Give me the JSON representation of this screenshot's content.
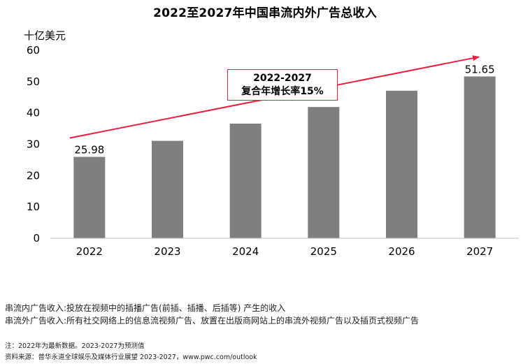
{
  "chart_data": {
    "type": "bar",
    "title": "2022至2027年中国串流内外广告总收入",
    "ylabel": "十亿美元",
    "xlabel": "",
    "categories": [
      "2022",
      "2023",
      "2024",
      "2025",
      "2026",
      "2027"
    ],
    "values": [
      25.98,
      31.1,
      36.6,
      41.9,
      47.1,
      51.65
    ],
    "data_labels": {
      "2022": "25.98",
      "2027": "51.65"
    },
    "ylim": [
      0,
      60
    ],
    "yticks": [
      "0",
      "10",
      "20",
      "30",
      "40",
      "50",
      "60"
    ],
    "grid": false,
    "bar_color": "#7f7f7f",
    "annotation": {
      "line1": "2022-2027",
      "line2": "复合年增长率15%",
      "color": "#e8213f"
    }
  },
  "notes": {
    "line1": "串流内广告收入:投放在视频中的插播广告(前插、插播、后插等) 产生的收入",
    "line2": "串流外广告收入:所有社交网络上的信息流视频广告、放置在出版商网站上的串流外视频广告以及插页式视频广告"
  },
  "footnotes": {
    "note": "注：2022年为最新数据。2023-2027为预测值",
    "source": "资料来源：普华永道全球娱乐及媒体行业展望 2023-2027，www.pwc.com/outlook"
  }
}
